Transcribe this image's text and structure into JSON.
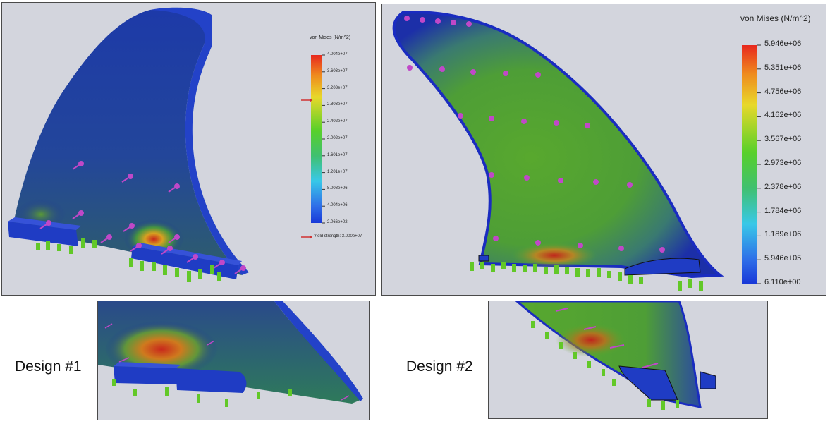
{
  "design1": {
    "label": "Design #1",
    "legend": {
      "title": "von Mises (N/m^2)",
      "ticks": [
        "4.004e+07",
        "3.603e+07",
        "3.203e+07",
        "2.803e+07",
        "2.402e+07",
        "2.002e+07",
        "1.601e+07",
        "1.201e+07",
        "8.008e+06",
        "4.004e+06",
        "2.066e+02"
      ],
      "yield_label": "Yield strength: 3.000e+07"
    }
  },
  "design2": {
    "label": "Design #2",
    "legend": {
      "title": "von Mises (N/m^2)",
      "ticks": [
        "5.946e+06",
        "5.351e+06",
        "4.756e+06",
        "4.162e+06",
        "3.567e+06",
        "2.973e+06",
        "2.378e+06",
        "1.784e+06",
        "1.189e+06",
        "5.946e+05",
        "6.110e+00"
      ]
    }
  },
  "colors": {
    "background": "#d3d5dd",
    "fin_blue": "#1b2f9a",
    "stress_green": "#5aa832",
    "stress_red": "#c0241c",
    "fixture_green": "#6ad22a",
    "load_arrow": "#c048c8"
  }
}
